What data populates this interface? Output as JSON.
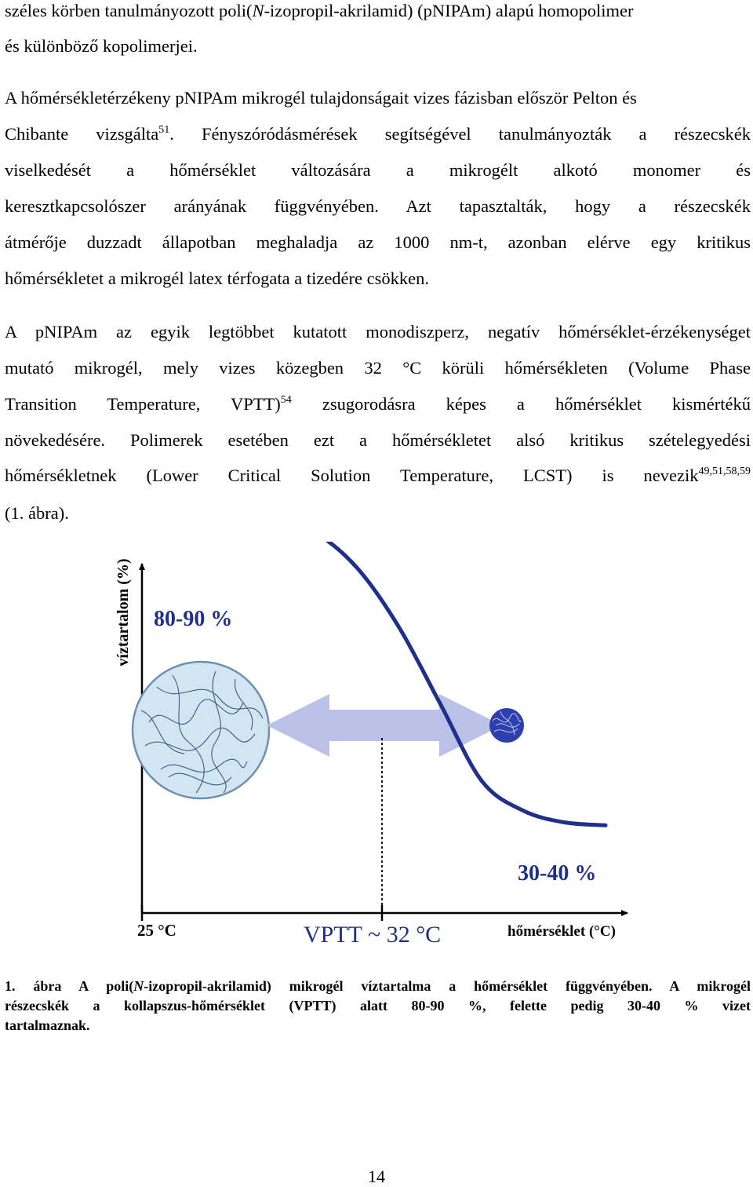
{
  "para1": {
    "l1": "széles körben tanulmányozott poli(",
    "l1_italic": "N",
    "l1_end": "-izopropil-akrilamid) (pNIPAm) alapú homopolimer",
    "l2": "és különböző kopolimerjei."
  },
  "para2": {
    "l1": "A hőmérsékletérzékeny pNIPAm mikrogél tulajdonságait vizes fázisban először Pelton és",
    "l2a": "Chibante vizsgálta",
    "l2_sup": "51",
    "l2b": ". Fényszóródásmérések segítségével tanulmányozták a részecskék",
    "l3": "viselkedését a hőmérséklet változására a mikrogélt alkotó monomer és",
    "l4": "keresztkapcsolószer arányának függvényében. Azt tapasztalták, hogy a részecskék",
    "l5": "átmérője duzzadt állapotban meghaladja az 1000 nm-t, azonban elérve egy kritikus",
    "l6": "hőmérsékletet a mikrogél latex térfogata a tizedére csökken."
  },
  "para3": {
    "l1": "A pNIPAm az egyik legtöbbet kutatott monodiszperz, negatív hőmérséklet-érzékenységet",
    "l2": "mutató mikrogél, mely vizes közegben 32 °C körüli hőmérsékleten (Volume Phase",
    "l3a": "Transition Temperature, VPTT)",
    "l3_sup": "54",
    "l3b": "zsugorodásra képes a hőmérséklet kismértékű",
    "l4": "növekedésére. Polimerek esetében ezt a hőmérsékletet alsó kritikus szételegyedési",
    "l5a": "hőmérsékletnek (Lower Critical Solution Temperature, LCST) is nevezik",
    "l5_sup": "49,51,58,59",
    "l6": "(1. ábra)."
  },
  "figure": {
    "ylabel": "víztartalom (%)",
    "high_label": "80-90 %",
    "low_label": "30-40 %",
    "x_start_label": "25 °C",
    "vptt_label": "VPTT ~ 32 °C",
    "xlabel": "hőmérséklet (°C)",
    "colors": {
      "curve": "#1e2f8c",
      "label": "#1e2f8c",
      "arrow": "#b9c1e6",
      "swollen": "#d2e6f2",
      "collapsed": "#2c3fae"
    }
  },
  "chart_data": {
    "type": "line",
    "title": "",
    "xlabel": "hőmérséklet (°C)",
    "ylabel": "víztartalom (%)",
    "annotations": [
      "80-90 %",
      "30-40 %",
      "25 °C",
      "VPTT ~ 32 °C"
    ],
    "series": [
      {
        "x": [
          25,
          26,
          27,
          28,
          29,
          30,
          31,
          32,
          33,
          34,
          35,
          36
        ],
        "values": [
          88,
          88,
          87.5,
          86.5,
          84,
          78,
          68,
          55,
          42,
          37,
          35,
          34.5
        ]
      }
    ]
  },
  "caption": {
    "l1a": "1. ábra A poli(",
    "l1_italic": "N",
    "l1b": "-izopropil-akrilamid) mikrogél víztartalma a hőmérséklet függvényében. A mikrogél",
    "l2": "részecskék a kollapszus-hőmérséklet (VPTT) alatt 80-90 %, felette pedig 30-40 % vizet",
    "l3": "tartalmaznak."
  },
  "page_number": "14"
}
